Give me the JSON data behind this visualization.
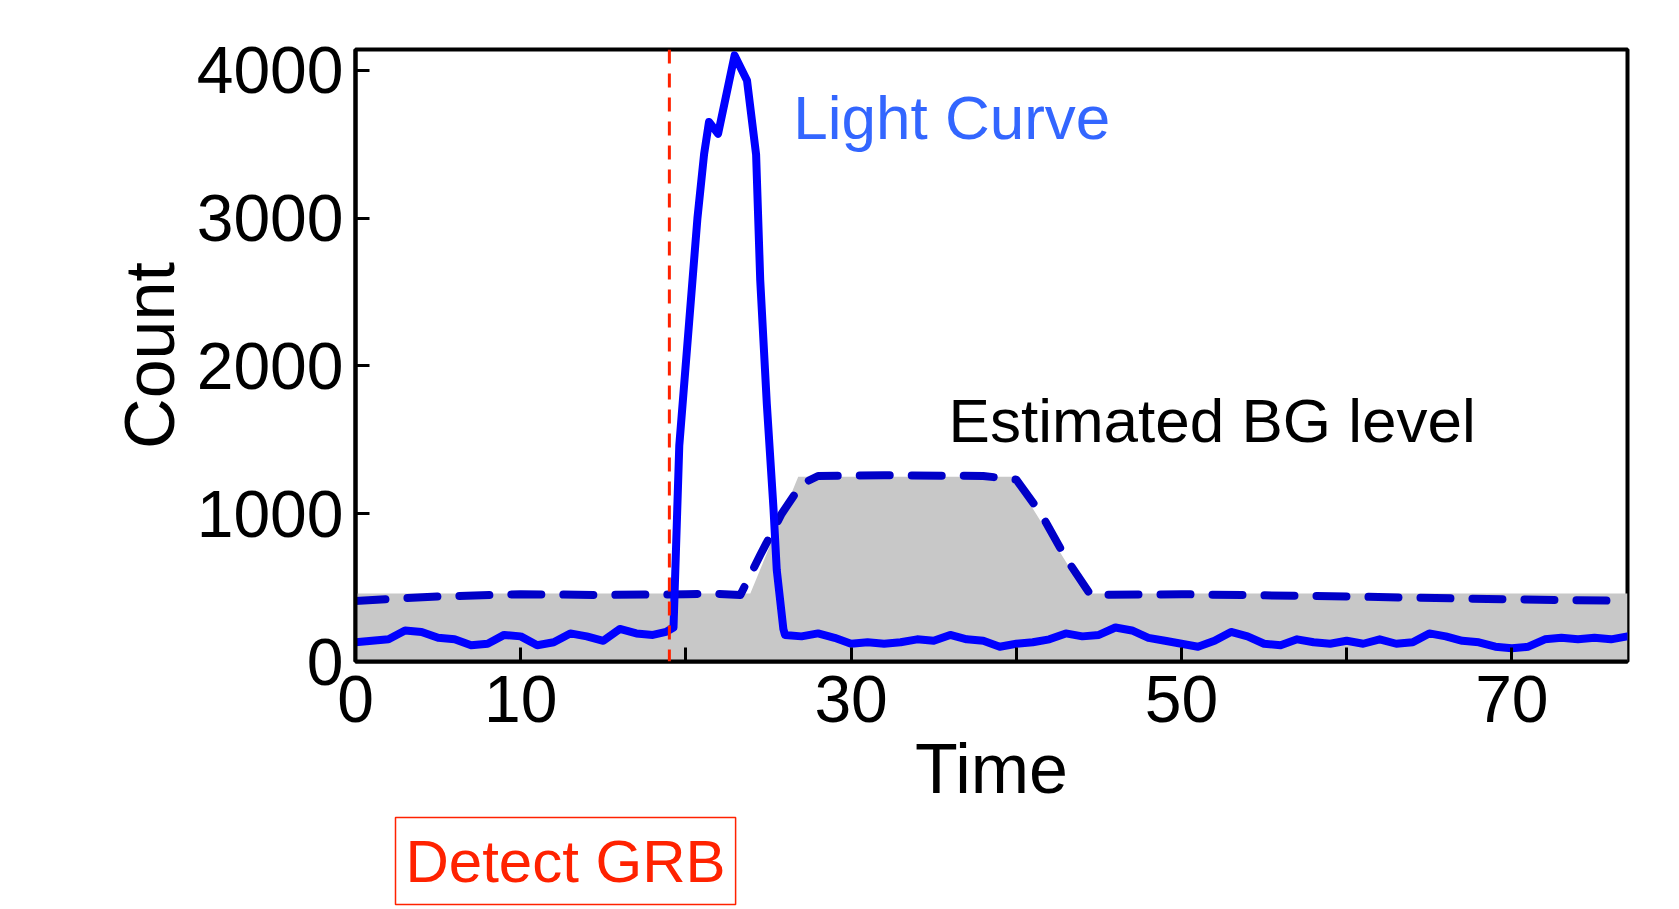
{
  "chart_data": {
    "type": "line",
    "xlabel": "Time",
    "ylabel": "Count",
    "xlim": [
      0,
      77
    ],
    "ylim": [
      0,
      4140
    ],
    "xticks": [
      0,
      10,
      {
        "value": 20,
        "label": null
      },
      30,
      {
        "value": 40,
        "label": null
      },
      50,
      {
        "value": 60,
        "label": null
      },
      70
    ],
    "yticks": [
      0,
      1000,
      2000,
      3000,
      4000
    ],
    "grid": false,
    "marker": "none",
    "series": [
      {
        "type": "area",
        "color": "#c8c8c8",
        "x": [
          0,
          23.9,
          26.8,
          39.8,
          44.2,
          77
        ],
        "values": [
          460,
          460,
          1250,
          1250,
          460,
          460
        ]
      },
      {
        "type": "line",
        "line_style": "dashed",
        "color": "#0000c8",
        "x": [
          0,
          5,
          10,
          15,
          20,
          21.5,
          23.3,
          24.5,
          25.8,
          27,
          28,
          32,
          38,
          40,
          41.5,
          43,
          44.5,
          50,
          60,
          70,
          77
        ],
        "values": [
          410,
          440,
          455,
          450,
          455,
          460,
          450,
          720,
          1000,
          1200,
          1255,
          1260,
          1255,
          1230,
          1000,
          700,
          450,
          455,
          440,
          420,
          410
        ]
      },
      {
        "line_style": "solid",
        "color": "#0000ff",
        "x": [
          0,
          1,
          2,
          3,
          4,
          5,
          6,
          7,
          8,
          9,
          10,
          11,
          12,
          13,
          14,
          15,
          16,
          17,
          18,
          18.8,
          19.25,
          19.6,
          20.2,
          20.7,
          21.1,
          21.4,
          21.95,
          22.95,
          23.7,
          24.25,
          24.5,
          24.9,
          25.3,
          25.5,
          25.9,
          26,
          27,
          28,
          29,
          30,
          31,
          32,
          33,
          34,
          35,
          36,
          37,
          38,
          39,
          40,
          41,
          42,
          43,
          44,
          45,
          46,
          47,
          48,
          49,
          50,
          51,
          52,
          53,
          54,
          55,
          56,
          57,
          58,
          59,
          60,
          61,
          62,
          63,
          64,
          65,
          66,
          67,
          68,
          69,
          70,
          71,
          72,
          73,
          74,
          75,
          76,
          77
        ],
        "values": [
          130,
          140,
          150,
          210,
          200,
          160,
          150,
          110,
          120,
          180,
          170,
          110,
          130,
          190,
          170,
          140,
          220,
          190,
          180,
          200,
          230,
          1460,
          2300,
          3000,
          3430,
          3650,
          3570,
          4100,
          3930,
          3430,
          2580,
          1740,
          1040,
          620,
          220,
          180,
          170,
          190,
          160,
          120,
          130,
          120,
          130,
          150,
          140,
          180,
          150,
          140,
          100,
          120,
          130,
          150,
          190,
          170,
          180,
          230,
          210,
          160,
          140,
          120,
          100,
          140,
          200,
          170,
          120,
          110,
          150,
          130,
          120,
          140,
          120,
          150,
          120,
          130,
          190,
          170,
          140,
          130,
          100,
          90,
          100,
          150,
          160,
          150,
          160,
          150,
          170
        ]
      }
    ],
    "ref_lines": [
      {
        "axis": "x",
        "value": 19,
        "label": "Detect GRB",
        "color": "#ff2200",
        "line_style": "dashed"
      }
    ],
    "annotations": [
      "Light Curve",
      "Estimated BG level"
    ]
  }
}
